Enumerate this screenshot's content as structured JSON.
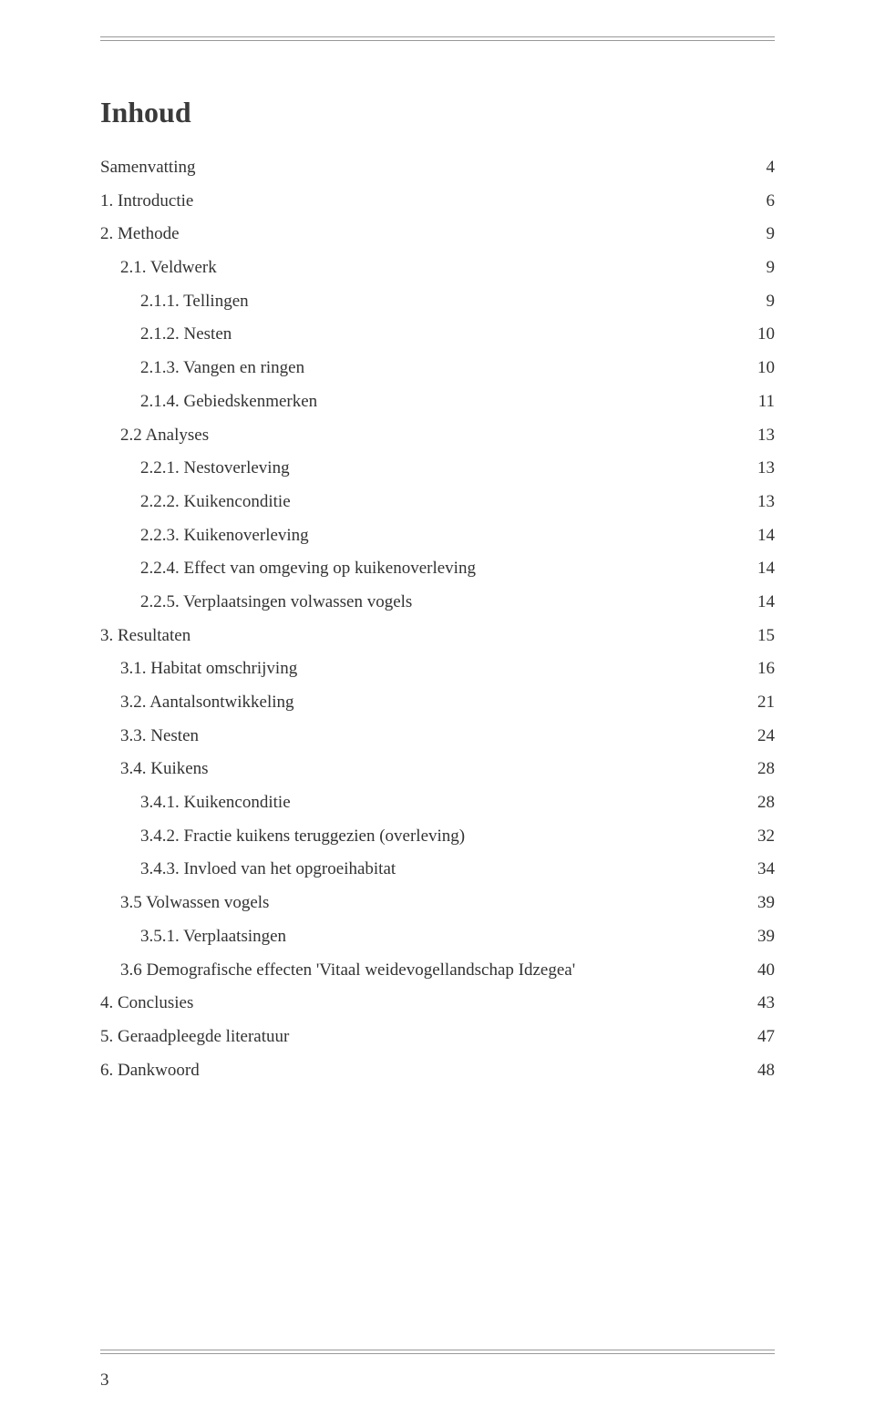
{
  "title": "Inhoud",
  "page_number": "3",
  "entries": [
    {
      "label": "Samenvatting",
      "page": "4",
      "indent": 0
    },
    {
      "label": "1. Introductie",
      "page": "6",
      "indent": 0
    },
    {
      "label": "2. Methode",
      "page": "9",
      "indent": 0
    },
    {
      "label": "2.1. Veldwerk",
      "page": "9",
      "indent": 1
    },
    {
      "label": "2.1.1. Tellingen",
      "page": "9",
      "indent": 2
    },
    {
      "label": "2.1.2. Nesten",
      "page": "10",
      "indent": 2
    },
    {
      "label": "2.1.3. Vangen en ringen",
      "page": "10",
      "indent": 2
    },
    {
      "label": "2.1.4. Gebiedskenmerken",
      "page": "11",
      "indent": 2
    },
    {
      "label": "2.2 Analyses",
      "page": "13",
      "indent": 1
    },
    {
      "label": "2.2.1. Nestoverleving",
      "page": "13",
      "indent": 2
    },
    {
      "label": "2.2.2. Kuikenconditie",
      "page": "13",
      "indent": 2
    },
    {
      "label": "2.2.3. Kuikenoverleving",
      "page": "14",
      "indent": 2
    },
    {
      "label": "2.2.4. Effect van omgeving op kuikenoverleving",
      "page": "14",
      "indent": 2
    },
    {
      "label": "2.2.5. Verplaatsingen volwassen vogels",
      "page": "14",
      "indent": 2
    },
    {
      "label": "3. Resultaten",
      "page": "15",
      "indent": 0
    },
    {
      "label": "3.1. Habitat omschrijving",
      "page": "16",
      "indent": 1
    },
    {
      "label": "3.2. Aantalsontwikkeling",
      "page": "21",
      "indent": 1
    },
    {
      "label": "3.3. Nesten",
      "page": "24",
      "indent": 1
    },
    {
      "label": "3.4. Kuikens",
      "page": "28",
      "indent": 1
    },
    {
      "label": "3.4.1. Kuikenconditie",
      "page": "28",
      "indent": 2
    },
    {
      "label": "3.4.2. Fractie kuikens teruggezien (overleving)",
      "page": "32",
      "indent": 2
    },
    {
      "label": "3.4.3. Invloed van het opgroeihabitat",
      "page": "34",
      "indent": 2
    },
    {
      "label": "3.5 Volwassen vogels",
      "page": "39",
      "indent": 1
    },
    {
      "label": "3.5.1. Verplaatsingen",
      "page": "39",
      "indent": 2
    },
    {
      "label": "3.6 Demografische effecten 'Vitaal weidevogellandschap Idzegea'",
      "page": "40",
      "indent": 1
    },
    {
      "label": "4. Conclusies",
      "page": "43",
      "indent": 0
    },
    {
      "label": "5. Geraadpleegde literatuur",
      "page": "47",
      "indent": 0
    },
    {
      "label": "6. Dankwoord",
      "page": "48",
      "indent": 0
    }
  ]
}
